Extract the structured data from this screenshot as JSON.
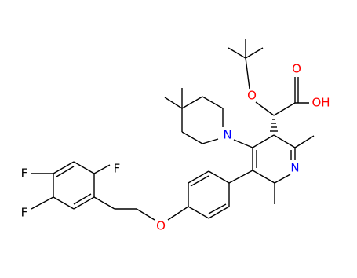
{
  "atoms": {
    "ether_o_tbu": "O",
    "carbonyl_o": "O",
    "hydroxyl": "OH",
    "piperidine_n": "N",
    "pyridine_n": "N",
    "ether_o_aryl": "O",
    "fluorine_1": "F",
    "fluorine_2": "F",
    "fluorine_3": "F"
  }
}
